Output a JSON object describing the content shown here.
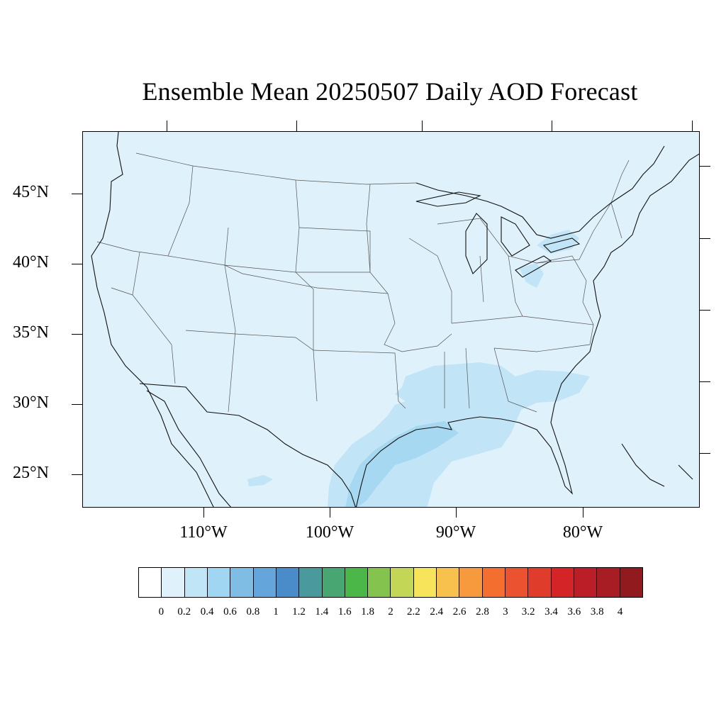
{
  "title": "Ensemble Mean 20250507 Daily AOD Forecast",
  "colors": {
    "ocean": "#dff1fa",
    "land_background": "#dff1fa",
    "aod_0_2": "#c1e4f6",
    "aod_0_4": "#a6d8f2",
    "state_lines": "#555555",
    "coast": "#111111"
  },
  "latitude_labels": [
    "45°N",
    "40°N",
    "35°N",
    "30°N",
    "25°N"
  ],
  "longitude_labels": [
    "110°W",
    "100°W",
    "90°W",
    "80°W"
  ],
  "colorbar": {
    "colors": [
      "#ffffff",
      "#dff1fa",
      "#bfe5f7",
      "#a0d6f1",
      "#80bde4",
      "#64a6dc",
      "#4a8cca",
      "#4a9a9d",
      "#48a673",
      "#4bb748",
      "#85c34f",
      "#c3d656",
      "#f7e45a",
      "#f8c04d",
      "#f79a3d",
      "#f46e2f",
      "#ea5230",
      "#e03c2b",
      "#d42428",
      "#bb1e26",
      "#a81d24",
      "#911a1f"
    ],
    "labels": [
      "0",
      "0.2",
      "0.4",
      "0.6",
      "0.8",
      "1",
      "1.2",
      "1.4",
      "1.6",
      "1.8",
      "2",
      "2.2",
      "2.4",
      "2.6",
      "2.8",
      "3",
      "3.2",
      "3.4",
      "3.6",
      "3.8",
      "4"
    ]
  }
}
